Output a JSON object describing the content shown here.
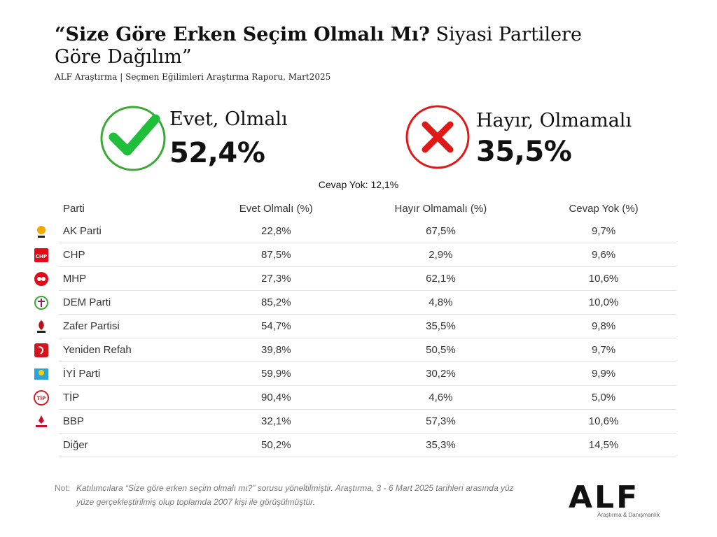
{
  "title": {
    "bold": "“Size Göre Erken Seçim Olmalı Mı?",
    "rest": " Siyasi Partilere Göre Dağılım”"
  },
  "subtitle": "ALF Araştırma | Seçmen Eğilimleri Araştırma Raporu, Mart2025",
  "summary": {
    "yes": {
      "label": "Evet, Olmalı",
      "value": "52,4%",
      "color": "#1fbf3a"
    },
    "no": {
      "label": "Hayır, Olmamalı",
      "value": "35,5%",
      "color": "#e01818"
    },
    "none": "Cevap Yok: 12,1%"
  },
  "chart_data": {
    "type": "table",
    "columns": [
      "Parti",
      "Evet Olmalı (%)",
      "Hayır Olmamalı (%)",
      "Cevap Yok (%)"
    ],
    "rows": [
      {
        "party": "AK Parti",
        "evet": "22,8%",
        "hayir": "67,5%",
        "yok": "9,7%",
        "logo": "ak-parti-logo-icon",
        "color": "#f2a900"
      },
      {
        "party": "CHP",
        "evet": "87,5%",
        "hayir": "2,9%",
        "yok": "9,6%",
        "logo": "chp-logo-icon",
        "color": "#e30a17"
      },
      {
        "party": "MHP",
        "evet": "27,3%",
        "hayir": "62,1%",
        "yok": "10,6%",
        "logo": "mhp-logo-icon",
        "color": "#e30a17"
      },
      {
        "party": "DEM Parti",
        "evet": "85,2%",
        "hayir": "4,8%",
        "yok": "10,0%",
        "logo": "dem-parti-logo-icon",
        "color": "#3aa935"
      },
      {
        "party": "Zafer Partisi",
        "evet": "54,7%",
        "hayir": "35,5%",
        "yok": "9,8%",
        "logo": "zafer-partisi-logo-icon",
        "color": "#b5121b"
      },
      {
        "party": "Yeniden Refah",
        "evet": "39,8%",
        "hayir": "50,5%",
        "yok": "9,7%",
        "logo": "yeniden-refah-logo-icon",
        "color": "#d7141e"
      },
      {
        "party": "İYİ Parti",
        "evet": "59,9%",
        "hayir": "30,2%",
        "yok": "9,9%",
        "logo": "iyi-parti-logo-icon",
        "color": "#2aa3d8"
      },
      {
        "party": "TİP",
        "evet": "90,4%",
        "hayir": "4,6%",
        "yok": "5,0%",
        "logo": "tip-logo-icon",
        "color": "#d71920"
      },
      {
        "party": "BBP",
        "evet": "32,1%",
        "hayir": "57,3%",
        "yok": "10,6%",
        "logo": "bbp-logo-icon",
        "color": "#c8102e"
      },
      {
        "party": "Diğer",
        "evet": "50,2%",
        "hayir": "35,3%",
        "yok": "14,5%",
        "logo": "",
        "color": ""
      }
    ]
  },
  "note": {
    "label": "Not:",
    "text": "Katılımcılara “Size göre erken seçim olmalı mı?” sorusu yöneltilmiştir.  Araştırma, 3 - 6 Mart 2025 tarihleri arasında yüz yüze gerçekleştirilmiş olup toplamda 2007 kişi ile görüşülmüştür."
  },
  "brand": {
    "logo": "ALF",
    "tagline": "Araştırma & Danışmanlık"
  }
}
